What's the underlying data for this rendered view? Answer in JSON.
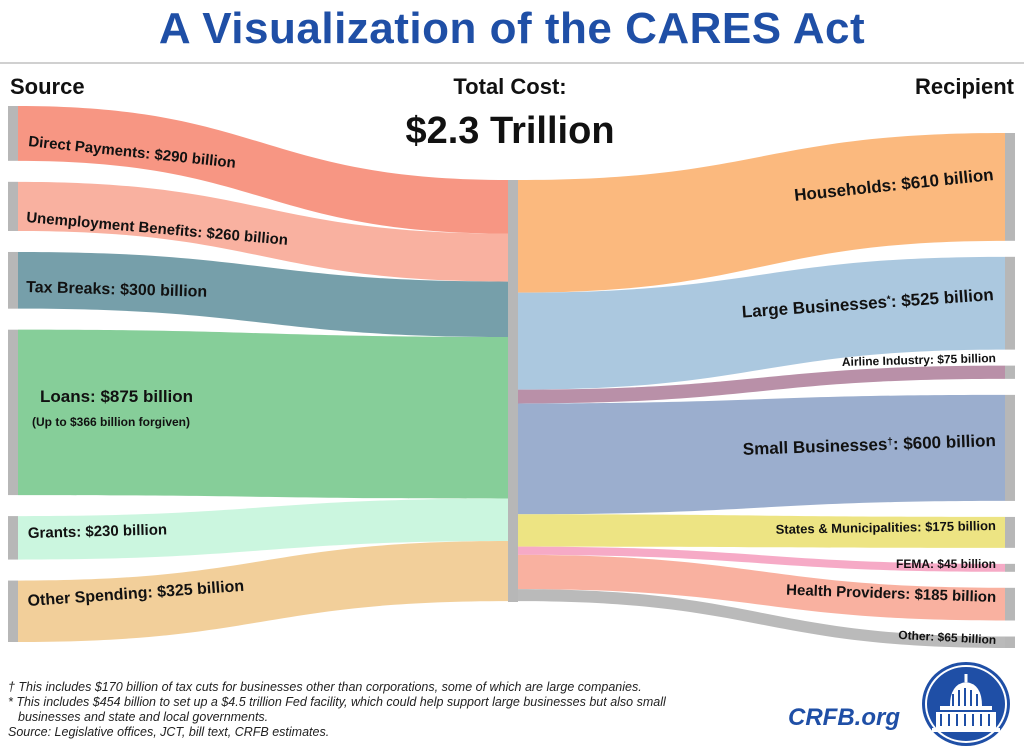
{
  "title": "A Visualization of the CARES Act",
  "source_heading": "Source",
  "recipient_heading": "Recipient",
  "total_label": "Total Cost:",
  "total_value": "$2.3 Trillion",
  "chart_data": {
    "type": "sankey",
    "total_billion": 2285,
    "sources": [
      {
        "label": "Direct Payments: $290 billion",
        "value": 290,
        "color": "#f7907c"
      },
      {
        "label": "Unemployment Benefits: $260 billion",
        "value": 260,
        "color": "#f9ad9b"
      },
      {
        "label": "Tax Breaks: $300 billion",
        "value": 300,
        "color": "#6f9aa5"
      },
      {
        "label": "Loans: $875 billion",
        "sublabel": "(Up to $366 billion forgiven)",
        "value": 875,
        "color": "#7fcb94"
      },
      {
        "label": "Grants: $230 billion",
        "value": 230,
        "color": "#c8f5dd"
      },
      {
        "label": "Other Spending: $325 billion",
        "value": 325,
        "color": "#f1cc95"
      }
    ],
    "recipients": [
      {
        "label": "Households: $610 billion",
        "value": 610,
        "color": "#fbb577"
      },
      {
        "label": "Large Businesses",
        "label_mark": "*",
        "label_suffix": ": $525 billion",
        "value": 525,
        "color": "#a7c5dd"
      },
      {
        "label": "Airline Industry: $75 billion",
        "value": 75,
        "color": "#b58aa3"
      },
      {
        "label": "Small Businesses",
        "label_mark": "†",
        "label_suffix": ": $600 billion",
        "value": 600,
        "color": "#96aacb"
      },
      {
        "label": "States & Municipalities: $175 billion",
        "value": 175,
        "color": "#ece37c"
      },
      {
        "label": "FEMA: $45 billion",
        "value": 45,
        "color": "#f6a5c3"
      },
      {
        "label": "Health Providers: $185 billion",
        "value": 185,
        "color": "#f9ad9b"
      },
      {
        "label": "Other: $65 billion",
        "value": 65,
        "color": "#b6b6b6"
      }
    ]
  },
  "footnotes": [
    "† This includes $170 billion of tax cuts for businesses other than corporations, some of which are large companies.",
    "* This includes $454 billion to set up a $4.5 trillion Fed facility, which could help support large businesses but also small",
    "businesses and state and local governments.",
    "Source: Legislative offices, JCT, bill text, CRFB estimates."
  ],
  "brand": "CRFB.org"
}
